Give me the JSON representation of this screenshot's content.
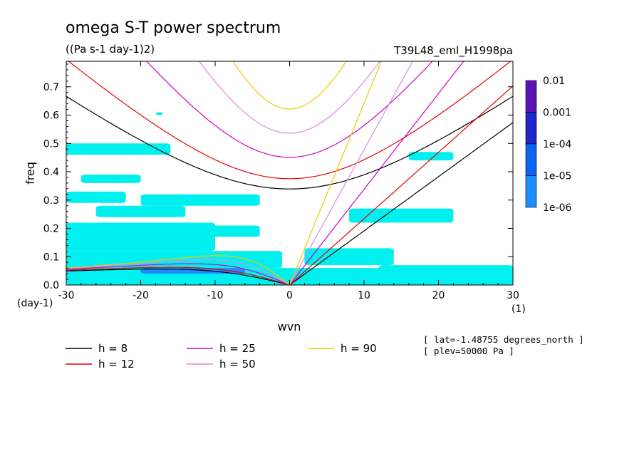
{
  "chart_data": {
    "type": "contour",
    "title": "omega S-T power spectrum",
    "units": "((Pa s-1 day-1)2)",
    "dataset": "T39L48_eml_H1998pa",
    "xlabel": "wvn",
    "ylabel": "freq",
    "x_unit": "(1)",
    "y_unit": "(day-1)",
    "xlim": [
      -30,
      30
    ],
    "ylim": [
      0,
      0.79
    ],
    "xticks": [
      -30,
      -20,
      -10,
      0,
      10,
      20,
      30
    ],
    "xtick_labels": [
      "-30",
      "-20",
      "-10",
      "0",
      "10",
      "20",
      "30"
    ],
    "yticks": [
      0,
      0.1,
      0.2,
      0.3,
      0.4,
      0.5,
      0.6,
      0.7
    ],
    "ytick_labels": [
      "0.0",
      "0.1",
      "0.2",
      "0.3",
      "0.4",
      "0.5",
      "0.6",
      "0.7"
    ],
    "colorbar": {
      "levels": [
        "0.01",
        "0.001",
        "1e-04",
        "1e-05",
        "1e-06"
      ],
      "colors": [
        "#5a14b4",
        "#1e28c8",
        "#0a64f0",
        "#1e8cff",
        "#00f0f0"
      ]
    },
    "dispersion_curves": [
      {
        "label": "h =  8",
        "h": 8,
        "color": "#000000"
      },
      {
        "label": "h = 12",
        "h": 12,
        "color": "#e60000"
      },
      {
        "label": "h = 25",
        "h": 25,
        "color": "#d200c8"
      },
      {
        "label": "h = 50",
        "h": 50,
        "color": "#dc8cdc"
      },
      {
        "label": "h = 90",
        "h": 90,
        "color": "#f0c800"
      }
    ],
    "annotations": [
      "[ lat=-1.48755 degrees_north ]",
      "[ plev=50000 Pa ]"
    ],
    "shaded_regions": [
      {
        "level": "1e-06",
        "x0": -30,
        "x1": 30,
        "y0": 0.0,
        "y1": 0.06
      },
      {
        "level": "1e-06",
        "x0": -30,
        "x1": -1,
        "y0": 0.06,
        "y1": 0.12
      },
      {
        "level": "1e-06",
        "x0": -30,
        "x1": -10,
        "y0": 0.12,
        "y1": 0.22
      },
      {
        "level": "1e-06",
        "x0": -26,
        "x1": -14,
        "y0": 0.24,
        "y1": 0.28
      },
      {
        "level": "1e-06",
        "x0": -30,
        "x1": -22,
        "y0": 0.29,
        "y1": 0.33
      },
      {
        "level": "1e-06",
        "x0": -20,
        "x1": -4,
        "y0": 0.28,
        "y1": 0.32
      },
      {
        "level": "1e-06",
        "x0": -30,
        "x1": -16,
        "y0": 0.46,
        "y1": 0.5
      },
      {
        "level": "1e-06",
        "x0": -28,
        "x1": -20,
        "y0": 0.36,
        "y1": 0.39
      },
      {
        "level": "1e-06",
        "x0": -12,
        "x1": -4,
        "y0": 0.17,
        "y1": 0.21
      },
      {
        "level": "1e-06",
        "x0": 2,
        "x1": 14,
        "y0": 0.07,
        "y1": 0.13
      },
      {
        "level": "1e-06",
        "x0": 8,
        "x1": 22,
        "y0": 0.22,
        "y1": 0.27
      },
      {
        "level": "1e-06",
        "x0": 12,
        "x1": 30,
        "y0": 0.03,
        "y1": 0.07
      },
      {
        "level": "1e-06",
        "x0": 16,
        "x1": 22,
        "y0": 0.44,
        "y1": 0.47
      },
      {
        "level": "1e-06",
        "x0": -18,
        "x1": -17,
        "y0": 0.6,
        "y1": 0.61
      },
      {
        "level": "1e-05",
        "x0": -20,
        "x1": -6,
        "y0": 0.04,
        "y1": 0.06
      }
    ]
  }
}
